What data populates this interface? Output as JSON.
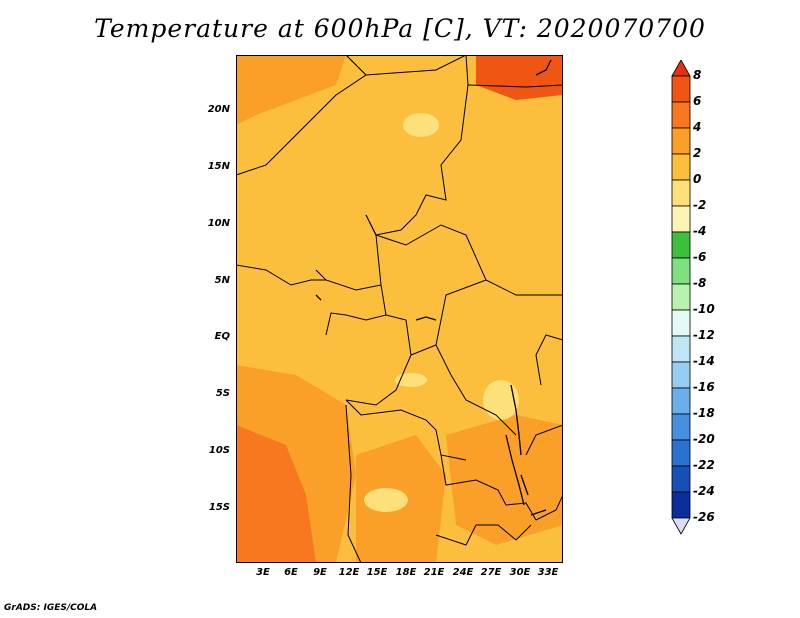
{
  "title": "Temperature at 600hPa [C], VT: 2020070700",
  "footer": "GrADS: IGES/COLA",
  "lat_labels": [
    "20N",
    "15N",
    "10N",
    "5N",
    "EQ",
    "5S",
    "10S",
    "15S"
  ],
  "lon_labels": [
    "3E",
    "6E",
    "9E",
    "12E",
    "15E",
    "18E",
    "21E",
    "24E",
    "27E",
    "30E",
    "33E"
  ],
  "colorbar": {
    "levels": [
      "8",
      "6",
      "4",
      "2",
      "0",
      "-2",
      "-4",
      "-6",
      "-8",
      "-10",
      "-12",
      "-14",
      "-16",
      "-18",
      "-20",
      "-22",
      "-24",
      "-26"
    ],
    "colors": [
      "#e8300d",
      "#f05514",
      "#f7781e",
      "#fa9f27",
      "#fbbf3d",
      "#fde07a",
      "#fcf4b4",
      "#3dbf3d",
      "#7fe07f",
      "#b9f2b0",
      "#e3fbf4",
      "#bfe6f7",
      "#96cdf2",
      "#6aafea",
      "#4691de",
      "#2a72d0",
      "#1550b8",
      "#0b2f9a",
      "#06137a"
    ]
  }
}
